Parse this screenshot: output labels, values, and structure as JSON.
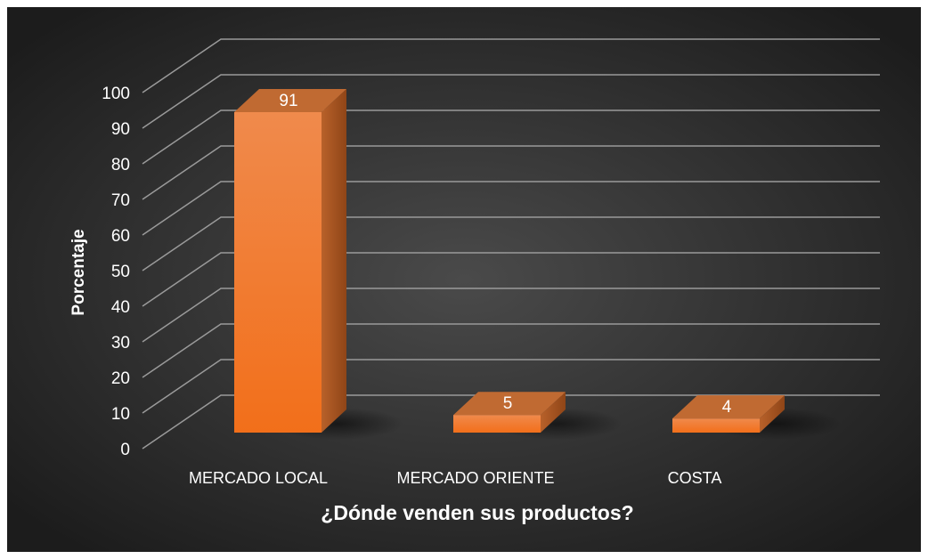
{
  "chart_data": {
    "type": "bar",
    "style": "3d-column",
    "categories": [
      "MERCADO LOCAL",
      "MERCADO ORIENTE",
      "COSTA"
    ],
    "values": [
      91,
      5,
      4
    ],
    "data_labels": [
      "91",
      "5",
      "4"
    ],
    "xlabel": "¿Dónde venden sus productos?",
    "ylabel": "Porcentaje",
    "ylim": [
      0,
      100
    ],
    "yticks": [
      "0",
      "10",
      "20",
      "30",
      "40",
      "50",
      "60",
      "70",
      "80",
      "90",
      "100"
    ],
    "grid": true,
    "legend": "none",
    "colors": {
      "background_center": "#4a4a4a",
      "background_edge": "#1c1c1c",
      "bar_front_top": "#f08a4c",
      "bar_front_bottom": "#f26f1a",
      "bar_side": "#a6501a",
      "bar_top": "#c06a32",
      "gridline": "#9a9a9a",
      "text": "#ffffff"
    }
  }
}
